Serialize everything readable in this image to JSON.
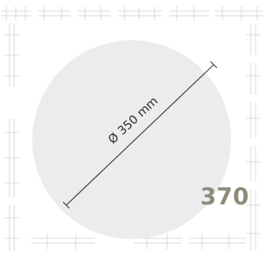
{
  "product": {
    "size_number": "370"
  },
  "disc": {
    "diameter_label": "Ø 350 mm",
    "fill_color": "#ececec"
  },
  "frame": {
    "line_color": "#d3d3d3"
  },
  "colors": {
    "size_number": "#8e8b7c",
    "text": "#2d2d2d"
  }
}
